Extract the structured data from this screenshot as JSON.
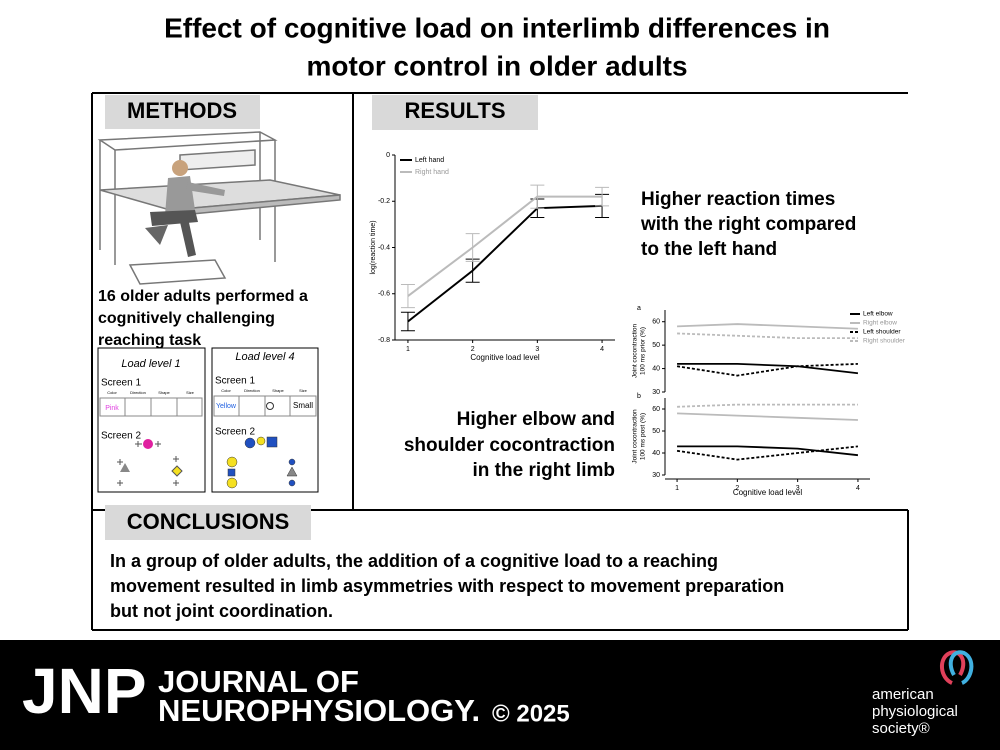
{
  "header": {
    "title_lines": [
      "Effect of cognitive load on interlimb differences in",
      "motor control in older adults"
    ]
  },
  "methods": {
    "heading": "METHODS",
    "description_lines": [
      "16 older adults performed a",
      "cognitively challenging",
      "reaching task"
    ],
    "tasks": [
      {
        "title": "Load level 1",
        "screen1": "Screen 1",
        "columns": [
          "Color",
          "Direction",
          "Shape",
          "Size"
        ],
        "cues": [
          "Pink"
        ],
        "screen2": "Screen 2"
      },
      {
        "title": "Load level 4",
        "screen1": "Screen 1",
        "columns": [
          "Color",
          "Direction",
          "Shape",
          "Size"
        ],
        "cues": [
          "Yellow",
          "Small"
        ],
        "screen2": "Screen 2"
      }
    ]
  },
  "results": {
    "heading": "RESULTS",
    "finding_1_lines": [
      "Higher reaction times",
      "with the right compared",
      "to the left hand"
    ],
    "finding_2_lines": [
      "Higher elbow and",
      "shoulder cocontraction",
      "in the right limb"
    ]
  },
  "conclusions": {
    "heading": "CONCLUSIONS",
    "text_lines": [
      "In a group of older adults, the addition of a cognitive load to a reaching",
      "movement resulted in limb asymmetries with respect to movement preparation",
      "but not joint coordination."
    ]
  },
  "footer": {
    "logo": "JNP",
    "journal_lines": [
      "JOURNAL OF",
      "NEUROPHYSIOLOGY."
    ],
    "year": "© 2025",
    "society_lines": [
      "american",
      "physiological",
      "society®"
    ]
  },
  "chart_data": [
    {
      "type": "line",
      "ylabel": "log(reaction time)",
      "xlabel": "Cognitive load level",
      "x": [
        1,
        2,
        3,
        4
      ],
      "xlim": [
        0.8,
        4.2
      ],
      "xticks": [
        1,
        2,
        3,
        4
      ],
      "ylim": [
        -0.8,
        0
      ],
      "yticks": [
        -0.8,
        -0.6,
        -0.4,
        -0.2,
        0
      ],
      "legend": "upper left",
      "series": [
        {
          "name": "Left hand",
          "color": "#000000",
          "values": [
            -0.72,
            -0.5,
            -0.23,
            -0.22
          ],
          "errors": [
            0.04,
            0.05,
            0.04,
            0.05
          ]
        },
        {
          "name": "Right hand",
          "color": "#bbbbbb",
          "values": [
            -0.61,
            -0.4,
            -0.18,
            -0.18
          ],
          "errors": [
            0.05,
            0.06,
            0.05,
            0.04
          ]
        }
      ]
    },
    {
      "type": "line-panels",
      "xlabel": "Cognitive load level",
      "x": [
        1,
        2,
        3,
        4
      ],
      "xlim": [
        0.8,
        4.2
      ],
      "xticks": [
        1,
        2,
        3,
        4
      ],
      "ylim": [
        30,
        65
      ],
      "yticks": [
        30,
        40,
        50,
        60
      ],
      "legend": "upper right",
      "series": [
        {
          "name": "Left elbow",
          "color": "#000000",
          "dashed": false
        },
        {
          "name": "Right elbow",
          "color": "#bbbbbb",
          "dashed": false
        },
        {
          "name": "Left shoulder",
          "color": "#000000",
          "dashed": true
        },
        {
          "name": "Right shoulder",
          "color": "#bbbbbb",
          "dashed": true
        }
      ],
      "panels": [
        {
          "label": "a",
          "ylabel_lines": [
            "Joint cocontraction",
            "100 ms prior (%)"
          ],
          "values": [
            [
              42,
              42,
              41,
              38
            ],
            [
              58,
              59,
              58,
              57
            ],
            [
              41,
              37,
              41,
              42
            ],
            [
              55,
              54,
              53,
              53
            ]
          ]
        },
        {
          "label": "b",
          "ylabel_lines": [
            "Joint cocontraction",
            "100 ms post (%)"
          ],
          "values": [
            [
              43,
              43,
              42,
              39
            ],
            [
              58,
              57,
              56,
              55
            ],
            [
              41,
              37,
              40,
              43
            ],
            [
              61,
              62,
              62,
              62
            ]
          ]
        }
      ]
    }
  ]
}
